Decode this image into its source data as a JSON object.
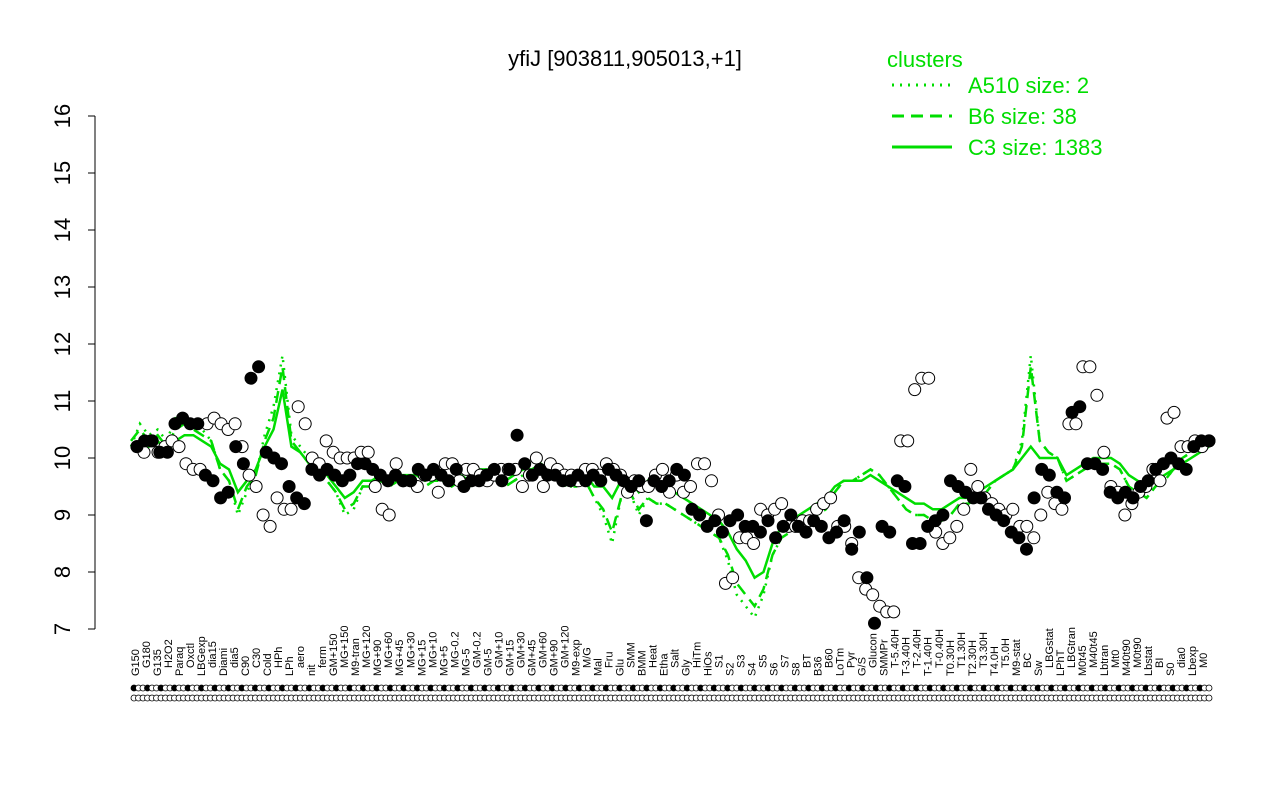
{
  "chart_data": {
    "type": "line",
    "title": "yfiJ [903811,905013,+1]",
    "xlabel": "",
    "ylabel": "",
    "ylim": [
      7,
      16
    ],
    "yticks": [
      7,
      8,
      9,
      10,
      11,
      12,
      13,
      14,
      15,
      16
    ],
    "grid": false,
    "legend": {
      "title": "clusters",
      "placement": "top-right",
      "entries": [
        {
          "label": "A510 size: 2",
          "style": "dotted"
        },
        {
          "label": "B6 size: 38",
          "style": "dashed"
        },
        {
          "label": "C3 size: 1383",
          "style": "solid"
        }
      ]
    },
    "x_labels": [
      "G150",
      "G180",
      "G135",
      "H2O2",
      "Paraq",
      "Oxctl",
      "LBGexp",
      "dia15",
      "Diami",
      "dia5",
      "C90",
      "C30",
      "Cold",
      "HPh",
      "LPh",
      "aero",
      "nit",
      "ferm",
      "GM+150",
      "MG+150",
      "M9-tran",
      "MG+120",
      "MG+90",
      "MG+60",
      "MG+45",
      "MG+30",
      "MG+15",
      "MG+10",
      "MG+5",
      "MG-0.2",
      "MG-5",
      "GM-0.2",
      "GM-5",
      "GM+10",
      "GM+15",
      "GM+30",
      "GM+45",
      "GM+60",
      "GM+90",
      "GM+120",
      "M9-exp",
      "M/G",
      "Mal",
      "Fru",
      "Glu",
      "SMM",
      "BMM",
      "Heat",
      "Etha",
      "Salt",
      "Gly",
      "HiTm",
      "HiOs",
      "S1",
      "S2",
      "S3",
      "S4",
      "S5",
      "S6",
      "S7",
      "S8",
      "BT",
      "B36",
      "B60",
      "LoTm",
      "Pyr",
      "G/S",
      "Glucon",
      "SMMPr",
      "T-5.40H",
      "T-3.40H",
      "T-2.40H",
      "T-1.40H",
      "T-0.40H",
      "T0.30H",
      "T1.30H",
      "T2.30H",
      "T3.30H",
      "T4.0H",
      "T5.0H",
      "M9-stat",
      "BC",
      "Sw",
      "LBGstat",
      "LPhT",
      "LBGtran",
      "M0t45",
      "M40t45",
      "Lbtran",
      "Mt0",
      "M40t90",
      "M0t90",
      "Lbstat",
      "BI",
      "S0",
      "dia0",
      "Lbexp",
      "M0"
    ],
    "series": [
      {
        "style": "solid",
        "values": [
          10.2,
          10.3,
          10.2,
          10.3,
          10.1,
          10.3,
          10.4,
          10.4,
          10.3,
          10.2,
          9.9,
          9.8,
          9.4,
          9.6,
          9.8,
          10.2,
          10.5,
          11.2,
          10.2,
          10.1,
          9.9,
          9.9,
          9.7,
          9.5,
          9.3,
          9.4,
          9.6,
          9.6,
          9.7,
          9.6,
          9.7,
          9.7,
          9.7,
          9.6,
          9.7,
          9.7,
          9.6,
          9.7,
          9.6,
          9.8,
          9.8,
          9.7,
          9.6,
          9.7,
          9.8,
          9.8,
          9.9,
          9.8,
          9.7,
          9.6,
          9.6,
          9.7,
          9.5,
          9.5,
          9.3,
          9.6,
          9.6,
          9.4,
          9.6,
          9.5,
          9.5,
          9.4,
          9.3,
          9.2,
          9.1,
          9.0,
          8.9,
          8.7,
          8.4,
          8.2,
          7.9,
          8.0,
          8.5,
          8.8,
          8.9,
          9.0,
          9.1,
          9.2,
          9.3,
          9.5,
          9.6,
          9.6,
          9.6,
          9.7,
          9.6,
          9.5,
          9.4,
          9.3,
          9.2,
          9.2,
          9.1,
          9.1,
          9.2,
          9.3,
          9.3,
          9.4,
          9.5,
          9.6,
          9.7,
          9.8,
          10.0,
          10.2,
          10.0,
          10.0,
          10.0,
          9.7,
          9.8,
          9.9,
          10.0,
          10.0,
          10.0,
          9.9,
          9.7,
          9.6,
          9.5,
          9.6,
          9.7,
          9.8,
          9.9,
          10.0,
          10.1,
          10.2
        ]
      },
      {
        "style": "dashed",
        "values": [
          10.3,
          10.5,
          10.3,
          10.4,
          10.2,
          10.5,
          10.6,
          10.5,
          10.4,
          10.3,
          9.8,
          9.6,
          9.1,
          9.5,
          9.7,
          10.3,
          10.7,
          11.6,
          10.3,
          10.1,
          9.9,
          9.9,
          9.6,
          9.4,
          9.1,
          9.2,
          9.5,
          9.5,
          9.6,
          9.5,
          9.6,
          9.6,
          9.6,
          9.5,
          9.6,
          9.6,
          9.5,
          9.6,
          9.5,
          9.7,
          9.7,
          9.6,
          9.5,
          9.6,
          9.7,
          9.7,
          9.8,
          9.7,
          9.6,
          9.5,
          9.5,
          9.6,
          9.3,
          9.1,
          8.7,
          9.3,
          9.4,
          9.1,
          9.3,
          9.2,
          9.2,
          9.1,
          9.0,
          8.9,
          8.8,
          8.7,
          8.6,
          8.3,
          7.8,
          7.6,
          7.4,
          7.7,
          8.3,
          8.6,
          8.7,
          8.8,
          8.9,
          9.0,
          9.1,
          9.4,
          9.6,
          9.6,
          9.7,
          9.8,
          9.7,
          9.5,
          9.3,
          9.1,
          9.0,
          9.0,
          8.9,
          8.9,
          9.0,
          9.2,
          9.2,
          9.3,
          9.4,
          9.6,
          9.7,
          9.8,
          10.2,
          11.6,
          10.3,
          10.1,
          10.0,
          9.6,
          9.7,
          9.8,
          9.9,
          9.9,
          9.9,
          9.8,
          9.5,
          9.4,
          9.3,
          9.5,
          9.6,
          9.8,
          10.0,
          10.1,
          10.2,
          10.3
        ]
      },
      {
        "style": "dotted",
        "values": [
          10.2,
          10.6,
          10.4,
          10.5,
          10.3,
          10.7,
          10.7,
          10.6,
          10.5,
          10.3,
          9.8,
          9.6,
          9.0,
          9.4,
          9.7,
          10.4,
          10.9,
          11.8,
          10.4,
          10.2,
          10.0,
          9.9,
          9.6,
          9.4,
          9.0,
          9.1,
          9.5,
          9.5,
          9.6,
          9.5,
          9.6,
          9.6,
          9.6,
          9.5,
          9.6,
          9.6,
          9.5,
          9.6,
          9.5,
          9.7,
          9.7,
          9.6,
          9.5,
          9.6,
          9.7,
          9.7,
          9.8,
          9.7,
          9.6,
          9.5,
          9.5,
          9.6,
          9.3,
          9.0,
          8.5,
          9.3,
          9.4,
          9.0,
          9.3,
          9.2,
          9.2,
          9.1,
          9.0,
          8.9,
          8.8,
          8.7,
          8.6,
          8.2,
          7.6,
          7.4,
          7.2,
          7.6,
          8.3,
          8.6,
          8.7,
          8.8,
          8.9,
          9.0,
          9.1,
          9.4,
          9.6,
          9.6,
          9.7,
          9.8,
          9.7,
          9.5,
          9.3,
          9.1,
          9.0,
          9.0,
          8.9,
          8.9,
          9.0,
          9.2,
          9.2,
          9.3,
          9.4,
          9.6,
          9.7,
          9.8,
          10.3,
          11.8,
          10.3,
          10.1,
          10.0,
          9.6,
          9.7,
          9.8,
          9.9,
          9.9,
          9.9,
          9.8,
          9.5,
          9.4,
          9.3,
          9.5,
          9.6,
          9.8,
          10.0,
          10.1,
          10.2,
          10.3
        ]
      }
    ],
    "points_open": [
      [
        10.2,
        10.1,
        10.3,
        10.1,
        10.2,
        10.3,
        10.2,
        9.9,
        9.8,
        9.8,
        10.6,
        10.7,
        10.6,
        10.5,
        10.6,
        10.2,
        9.7,
        9.5,
        9.0,
        8.8,
        9.3,
        9.1,
        9.1,
        10.9,
        10.6,
        10.0,
        9.9,
        10.3,
        10.1,
        10.0,
        10.0,
        10.0,
        10.1,
        10.1,
        9.5,
        9.1,
        9.0,
        9.9,
        9.6,
        9.6,
        9.5,
        9.7,
        9.7,
        9.4,
        9.9,
        9.9,
        9.6,
        9.8,
        9.8,
        9.7,
        9.6,
        9.7,
        9.8,
        9.8,
        9.8,
        9.5,
        9.7,
        10.0,
        9.5,
        9.9,
        9.8,
        9.7,
        9.7,
        9.6,
        9.8,
        9.8,
        9.7,
        9.9,
        9.8,
        9.7,
        9.4,
        9.6,
        9.5,
        9.5,
        9.7,
        9.8,
        9.4,
        9.7,
        9.4,
        9.5,
        9.9,
        9.9,
        9.6,
        9.0,
        7.8,
        7.9,
        8.6,
        8.6,
        8.5,
        9.1,
        9.0,
        9.1,
        9.2,
        8.8,
        8.8,
        8.9,
        8.9,
        9.1,
        9.2,
        9.3,
        8.8,
        8.8,
        8.5,
        7.9,
        7.7,
        7.6,
        7.4,
        7.3,
        7.3,
        10.3,
        10.3,
        11.2,
        11.4,
        11.4,
        8.7,
        8.5,
        8.6,
        8.8,
        9.1,
        9.8,
        9.5,
        9.3,
        9.2,
        9.1,
        9.0,
        9.1,
        8.8,
        8.8,
        8.6,
        9.0,
        9.4,
        9.2,
        9.1,
        10.6,
        10.6,
        11.6,
        11.6,
        11.1,
        10.1,
        9.5,
        9.4,
        9.0,
        9.2,
        9.4,
        9.5,
        9.8,
        9.6,
        10.7,
        10.8,
        10.2,
        10.2,
        10.3,
        10.2,
        10.3
      ]
    ],
    "points_filled": [
      [
        10.2,
        10.3,
        10.3,
        10.1,
        10.1,
        10.6,
        10.7,
        10.6,
        10.6,
        9.7,
        9.6,
        9.3,
        9.4,
        10.2,
        9.9,
        11.4,
        11.6,
        10.1,
        10.0,
        9.9,
        9.5,
        9.3,
        9.2,
        9.8,
        9.7,
        9.8,
        9.7,
        9.6,
        9.7,
        9.9,
        9.9,
        9.8,
        9.7,
        9.6,
        9.7,
        9.6,
        9.6,
        9.8,
        9.7,
        9.8,
        9.7,
        9.6,
        9.8,
        9.5,
        9.6,
        9.6,
        9.7,
        9.8,
        9.6,
        9.8,
        10.4,
        9.9,
        9.7,
        9.8,
        9.7,
        9.7,
        9.6,
        9.6,
        9.7,
        9.6,
        9.7,
        9.6,
        9.8,
        9.7,
        9.6,
        9.5,
        9.6,
        8.9,
        9.6,
        9.5,
        9.6,
        9.8,
        9.7,
        9.1,
        9.0,
        8.8,
        8.9,
        8.7,
        8.9,
        9.0,
        8.8,
        8.8,
        8.7,
        8.9,
        8.6,
        8.8,
        9.0,
        8.8,
        8.7,
        8.9,
        8.8,
        8.6,
        8.7,
        8.9,
        8.4,
        8.7,
        7.9,
        7.1,
        8.8,
        8.7,
        9.6,
        9.5,
        8.5,
        8.5,
        8.8,
        8.9,
        9.0,
        9.6,
        9.5,
        9.4,
        9.3,
        9.3,
        9.1,
        9.0,
        8.9,
        8.7,
        8.6,
        8.4,
        9.3,
        9.8,
        9.7,
        9.4,
        9.3,
        10.8,
        10.9,
        9.9,
        9.9,
        9.8,
        9.4,
        9.3,
        9.4,
        9.3,
        9.5,
        9.6,
        9.8,
        9.9,
        10.0,
        9.9,
        9.8,
        10.2,
        10.3,
        10.3
      ]
    ]
  }
}
